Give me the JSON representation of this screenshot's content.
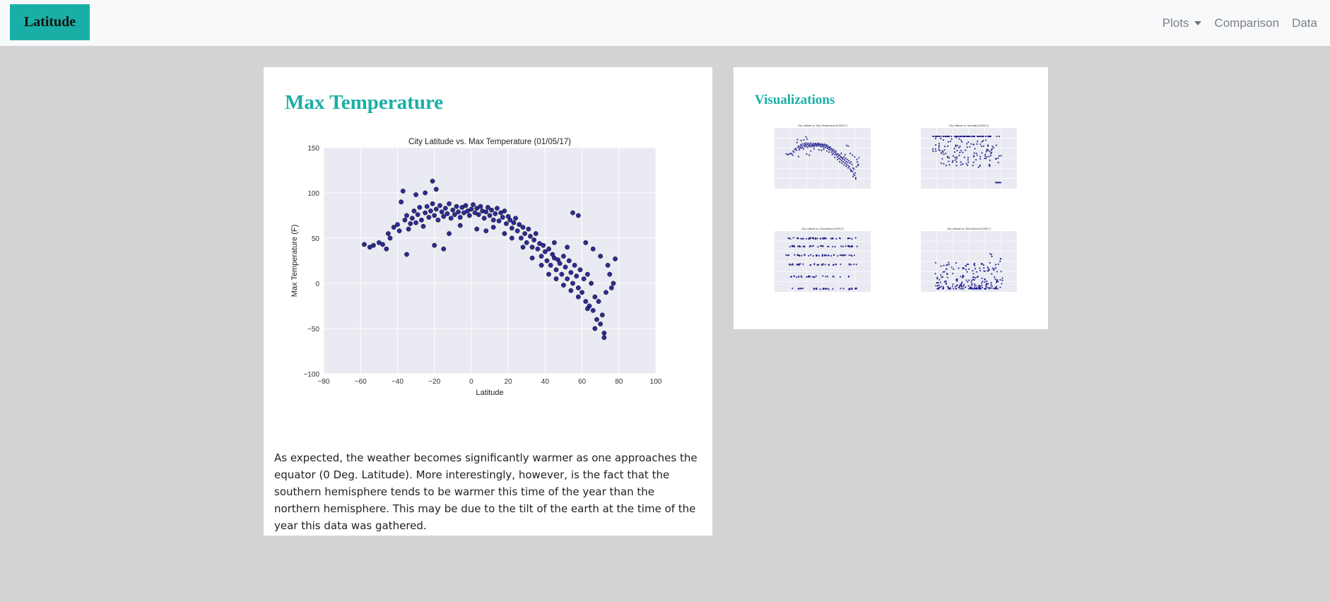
{
  "navbar": {
    "brand": "Latitude",
    "links": [
      {
        "label": "Plots",
        "dropdown": true
      },
      {
        "label": "Comparison"
      },
      {
        "label": "Data"
      }
    ]
  },
  "main_card": {
    "title": "Max Temperature",
    "description": "As expected, the weather becomes significantly warmer as one approaches the equator (0 Deg. Latitude). More interestingly, however, is the fact that the southern hemisphere tends to be warmer this time of the year than the northern hemisphere. This may be due to the tilt of the earth at the time of the year this data was gathered."
  },
  "viz_card": {
    "title": "Visualizations"
  },
  "colors": {
    "accent": "#1aafa6",
    "plot_bg": "#eaeaf2",
    "marker": "#0a0a80",
    "page_bg": "#d3d3d3"
  },
  "chart_data": [
    {
      "type": "scatter",
      "title": "City Latitude vs. Max Temperature (01/05/17)",
      "xlabel": "Latitude",
      "ylabel": "Max Temperature (F)",
      "xlim": [
        -80,
        100
      ],
      "ylim": [
        -100,
        150
      ],
      "xticks": [
        -80,
        -60,
        -40,
        -20,
        0,
        20,
        40,
        60,
        80,
        100
      ],
      "yticks": [
        -100,
        -50,
        0,
        50,
        100,
        150
      ],
      "xtick_labels": [
        "−80",
        "−60",
        "−40",
        "−20",
        "0",
        "20",
        "40",
        "60",
        "80",
        "100"
      ],
      "ytick_labels": [
        "−100",
        "−50",
        "0",
        "50",
        "100",
        "150"
      ],
      "grid": true,
      "points": [
        [
          -55,
          40
        ],
        [
          -53,
          42
        ],
        [
          -50,
          45
        ],
        [
          -46,
          38
        ],
        [
          -45,
          55
        ],
        [
          -44,
          50
        ],
        [
          -42,
          62
        ],
        [
          -40,
          65
        ],
        [
          -39,
          58
        ],
        [
          -38,
          90
        ],
        [
          -36,
          70
        ],
        [
          -35,
          75
        ],
        [
          -34,
          60
        ],
        [
          -33,
          66
        ],
        [
          -32,
          72
        ],
        [
          -31,
          80
        ],
        [
          -30,
          67
        ],
        [
          -29,
          76
        ],
        [
          -28,
          84
        ],
        [
          -27,
          70
        ],
        [
          -26,
          63
        ],
        [
          -25,
          78
        ],
        [
          -24,
          85
        ],
        [
          -23,
          73
        ],
        [
          -22,
          80
        ],
        [
          -21,
          88
        ],
        [
          -20,
          75
        ],
        [
          -19,
          82
        ],
        [
          -18,
          70
        ],
        [
          -17,
          86
        ],
        [
          -16,
          79
        ],
        [
          -15,
          74
        ],
        [
          -14,
          83
        ],
        [
          -13,
          77
        ],
        [
          -12,
          88
        ],
        [
          -11,
          72
        ],
        [
          -10,
          81
        ],
        [
          -9,
          76
        ],
        [
          -8,
          85
        ],
        [
          -7,
          79
        ],
        [
          -6,
          73
        ],
        [
          -5,
          84
        ],
        [
          -4,
          78
        ],
        [
          -3,
          86
        ],
        [
          -2,
          80
        ],
        [
          -1,
          75
        ],
        [
          0,
          82
        ],
        [
          1,
          87
        ],
        [
          2,
          78
        ],
        [
          3,
          83
        ],
        [
          4,
          76
        ],
        [
          5,
          85
        ],
        [
          6,
          80
        ],
        [
          7,
          72
        ],
        [
          8,
          79
        ],
        [
          9,
          84
        ],
        [
          10,
          75
        ],
        [
          11,
          81
        ],
        [
          12,
          70
        ],
        [
          13,
          77
        ],
        [
          14,
          83
        ],
        [
          15,
          69
        ],
        [
          16,
          78
        ],
        [
          17,
          73
        ],
        [
          18,
          80
        ],
        [
          19,
          66
        ],
        [
          20,
          74
        ],
        [
          21,
          70
        ],
        [
          22,
          61
        ],
        [
          23,
          67
        ],
        [
          24,
          72
        ],
        [
          25,
          58
        ],
        [
          26,
          65
        ],
        [
          27,
          50
        ],
        [
          28,
          62
        ],
        [
          29,
          55
        ],
        [
          30,
          45
        ],
        [
          31,
          60
        ],
        [
          32,
          52
        ],
        [
          33,
          40
        ],
        [
          34,
          48
        ],
        [
          35,
          55
        ],
        [
          36,
          38
        ],
        [
          37,
          44
        ],
        [
          38,
          30
        ],
        [
          39,
          42
        ],
        [
          40,
          35
        ],
        [
          41,
          25
        ],
        [
          42,
          38
        ],
        [
          43,
          20
        ],
        [
          44,
          32
        ],
        [
          45,
          28
        ],
        [
          46,
          15
        ],
        [
          47,
          26
        ],
        [
          48,
          22
        ],
        [
          49,
          10
        ],
        [
          50,
          30
        ],
        [
          51,
          18
        ],
        [
          52,
          5
        ],
        [
          53,
          25
        ],
        [
          54,
          12
        ],
        [
          55,
          0
        ],
        [
          56,
          20
        ],
        [
          57,
          8
        ],
        [
          58,
          -5
        ],
        [
          59,
          15
        ],
        [
          60,
          -10
        ],
        [
          61,
          5
        ],
        [
          62,
          -20
        ],
        [
          63,
          10
        ],
        [
          64,
          -25
        ],
        [
          65,
          0
        ],
        [
          66,
          -30
        ],
        [
          67,
          -15
        ],
        [
          68,
          -40
        ],
        [
          69,
          -20
        ],
        [
          70,
          -45
        ],
        [
          71,
          -35
        ],
        [
          72,
          -55
        ],
        [
          73,
          -10
        ],
        [
          74,
          20
        ],
        [
          75,
          10
        ],
        [
          76,
          -5
        ],
        [
          78,
          27
        ],
        [
          77,
          0
        ],
        [
          -35,
          32
        ],
        [
          -20,
          42
        ],
        [
          -15,
          38
        ],
        [
          -25,
          100
        ],
        [
          -21,
          113
        ],
        [
          -19,
          104
        ],
        [
          -37,
          102
        ],
        [
          -30,
          98
        ],
        [
          55,
          78
        ],
        [
          58,
          75
        ],
        [
          -58,
          43
        ],
        [
          -48,
          43
        ],
        [
          70,
          30
        ],
        [
          66,
          38
        ],
        [
          62,
          45
        ],
        [
          -12,
          55
        ],
        [
          -6,
          64
        ],
        [
          3,
          60
        ],
        [
          8,
          58
        ],
        [
          12,
          62
        ],
        [
          18,
          55
        ],
        [
          22,
          50
        ],
        [
          28,
          40
        ],
        [
          33,
          28
        ],
        [
          38,
          20
        ],
        [
          42,
          10
        ],
        [
          46,
          5
        ],
        [
          50,
          -2
        ],
        [
          54,
          -8
        ],
        [
          58,
          -15
        ],
        [
          63,
          -28
        ],
        [
          67,
          -50
        ],
        [
          72,
          -60
        ],
        [
          45,
          45
        ],
        [
          52,
          40
        ]
      ]
    }
  ],
  "thumbnails": [
    {
      "title": "City Latitude vs. Max Temperature (01/05/17)",
      "kind": "temperature"
    },
    {
      "title": "City Latitude vs. Humidity (01/05/17)",
      "kind": "humidity"
    },
    {
      "title": "City Latitude vs. Cloudiness (01/05/17)",
      "kind": "cloudiness"
    },
    {
      "title": "City Latitude vs. Wind Speed (01/05/17)",
      "kind": "wind"
    }
  ]
}
